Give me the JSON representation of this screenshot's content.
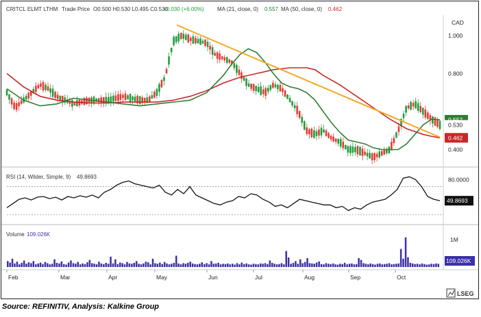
{
  "header": {
    "instrument": "CRITCL ELMT LTHM",
    "price_label": "Trade Price",
    "ohlc": "O0.500 H0.530 L0.495 C0.530",
    "change": "+0.030 (+6.00%)",
    "ma21_label": "MA (21, close, 0)",
    "ma21_value": "0.557",
    "ma50_label": "MA (50, close, 0)",
    "ma50_value": "0.462",
    "currency": "CAD"
  },
  "rsi_header": {
    "label": "RSI (14, Wilder, Simple, 9)",
    "value": "49.8693"
  },
  "volume_header": {
    "label": "Volume",
    "value": "109.026K"
  },
  "source_text": "Source: REFINITIV, Analysis: Kalkine Group",
  "brand": "LSEG",
  "colors": {
    "candle_up": "#1f9d3b",
    "candle_down": "#e53935",
    "ma21": "#2e7d32",
    "ma50": "#c62828",
    "trendline": "#f5a623",
    "rsi": "#111111",
    "volume": "#3b2fa8"
  },
  "chart_data": [
    {
      "type": "candlestick",
      "title": "CRITCL ELMT LTHM",
      "ylabel": "CAD",
      "ylim": [
        0.33,
        1.1
      ],
      "x_ticks": [
        "Feb",
        "Mar",
        "Apr",
        "May",
        "Jun",
        "Jul",
        "Aug",
        "Sep",
        "Oct"
      ],
      "y_ticks": [
        "1.000",
        "0.800",
        "0.400"
      ],
      "last_price": 0.53,
      "series": [
        {
          "name": "MA (21, close, 0)",
          "last": 0.557,
          "points": [
            [
              0,
              0.72
            ],
            [
              2,
              0.66
            ],
            [
              4,
              0.63
            ],
            [
              6,
              0.64
            ],
            [
              8,
              0.67
            ],
            [
              10,
              0.66
            ],
            [
              12,
              0.65
            ],
            [
              14,
              0.64
            ],
            [
              16,
              0.63
            ],
            [
              18,
              0.64
            ],
            [
              20,
              0.65
            ],
            [
              22,
              0.66
            ],
            [
              24,
              0.7
            ],
            [
              26,
              0.79
            ],
            [
              27,
              0.85
            ],
            [
              28,
              0.9
            ],
            [
              29,
              0.93
            ],
            [
              30,
              0.91
            ],
            [
              31,
              0.86
            ],
            [
              32,
              0.8
            ],
            [
              33,
              0.75
            ],
            [
              34,
              0.73
            ],
            [
              35,
              0.72
            ],
            [
              36,
              0.7
            ],
            [
              37,
              0.66
            ],
            [
              38,
              0.6
            ],
            [
              39,
              0.54
            ],
            [
              40,
              0.49
            ],
            [
              41,
              0.45
            ],
            [
              42,
              0.44
            ],
            [
              43,
              0.43
            ],
            [
              44,
              0.41
            ],
            [
              45,
              0.4
            ],
            [
              46,
              0.4
            ],
            [
              47,
              0.4
            ],
            [
              48,
              0.43
            ],
            [
              49,
              0.48
            ],
            [
              50,
              0.53
            ],
            [
              51,
              0.56
            ],
            [
              52,
              0.557
            ]
          ]
        },
        {
          "name": "MA (50, close, 0)",
          "last": 0.462,
          "points": [
            [
              0,
              0.8
            ],
            [
              2,
              0.73
            ],
            [
              4,
              0.68
            ],
            [
              6,
              0.66
            ],
            [
              8,
              0.65
            ],
            [
              10,
              0.645
            ],
            [
              12,
              0.645
            ],
            [
              14,
              0.65
            ],
            [
              16,
              0.65
            ],
            [
              18,
              0.65
            ],
            [
              20,
              0.66
            ],
            [
              22,
              0.68
            ],
            [
              24,
              0.71
            ],
            [
              26,
              0.75
            ],
            [
              28,
              0.78
            ],
            [
              30,
              0.8
            ],
            [
              32,
              0.82
            ],
            [
              34,
              0.83
            ],
            [
              36,
              0.83
            ],
            [
              37,
              0.82
            ],
            [
              38,
              0.79
            ],
            [
              40,
              0.74
            ],
            [
              42,
              0.68
            ],
            [
              44,
              0.62
            ],
            [
              46,
              0.56
            ],
            [
              48,
              0.51
            ],
            [
              50,
              0.48
            ],
            [
              51,
              0.47
            ],
            [
              52,
              0.462
            ]
          ]
        }
      ],
      "trendline": [
        [
          20.4,
          1.055
        ],
        [
          52,
          0.465
        ]
      ]
    },
    {
      "type": "line",
      "title": "RSI (14, Wilder, Simple, 9)",
      "ylim": [
        20,
        90
      ],
      "y_ticks": [
        "80.0000",
        "49.8693"
      ],
      "reference_lines": [
        70,
        30
      ],
      "series": [
        {
          "name": "RSI (14, Wilder, Simple, 9)",
          "values": [
            40,
            46,
            52,
            54,
            51,
            55,
            56,
            53,
            55,
            51,
            56,
            54,
            57,
            55,
            58,
            54,
            62,
            66,
            72,
            76,
            78,
            74,
            72,
            70,
            68,
            72,
            62,
            58,
            66,
            60,
            70,
            58,
            54,
            50,
            46,
            44,
            48,
            50,
            56,
            54,
            60,
            58,
            52,
            48,
            42,
            44,
            40,
            46,
            52,
            50,
            48,
            46,
            44,
            44,
            40,
            42,
            36,
            40,
            38,
            44,
            48,
            50,
            52,
            58,
            66,
            82,
            84,
            80,
            70,
            56,
            52,
            50
          ]
        }
      ]
    },
    {
      "type": "bar",
      "title": "Volume",
      "ylim": [
        0,
        1200000
      ],
      "y_ticks": [
        "1M",
        "109.026K"
      ],
      "series": [
        {
          "name": "Volume",
          "values": [
            200,
            150,
            280,
            120,
            180,
            90,
            140,
            220,
            110,
            160,
            130,
            200,
            90,
            120,
            150,
            100,
            170,
            130,
            90,
            110,
            260,
            140,
            120,
            190,
            100,
            80,
            150,
            220,
            130,
            110,
            170,
            90,
            120,
            100,
            160,
            240,
            130,
            110,
            90,
            180,
            120,
            100,
            140,
            110,
            350,
            120,
            260,
            100,
            150,
            130,
            90,
            170,
            120,
            110,
            140,
            200,
            110,
            90,
            120,
            180,
            160,
            90,
            280,
            130,
            110,
            150,
            100,
            170,
            120,
            90,
            110,
            140,
            380,
            120,
            90,
            130,
            110,
            140,
            180,
            120,
            100,
            90,
            110,
            160,
            100,
            130,
            90,
            200,
            110,
            120,
            140,
            90,
            110,
            100,
            120,
            90,
            110,
            80,
            130,
            90,
            150,
            100,
            120,
            90,
            80,
            110,
            100,
            90,
            120,
            110,
            130,
            100,
            220,
            140,
            110,
            90,
            100,
            130,
            90,
            540,
            320,
            110,
            140,
            200,
            110,
            260,
            130,
            170,
            300,
            130,
            120,
            110,
            150,
            190,
            100,
            90,
            130,
            110,
            100,
            120,
            90,
            80,
            110,
            100,
            140,
            90,
            110,
            120,
            90,
            100,
            300,
            240,
            130,
            110,
            90,
            120,
            100,
            80,
            110,
            120,
            90,
            100,
            110,
            130,
            90,
            100,
            110,
            120,
            610,
            280,
            1000,
            330,
            140,
            120,
            100,
            110,
            90,
            120,
            100,
            80,
            90,
            110,
            100,
            120,
            109
          ]
        }
      ]
    }
  ]
}
